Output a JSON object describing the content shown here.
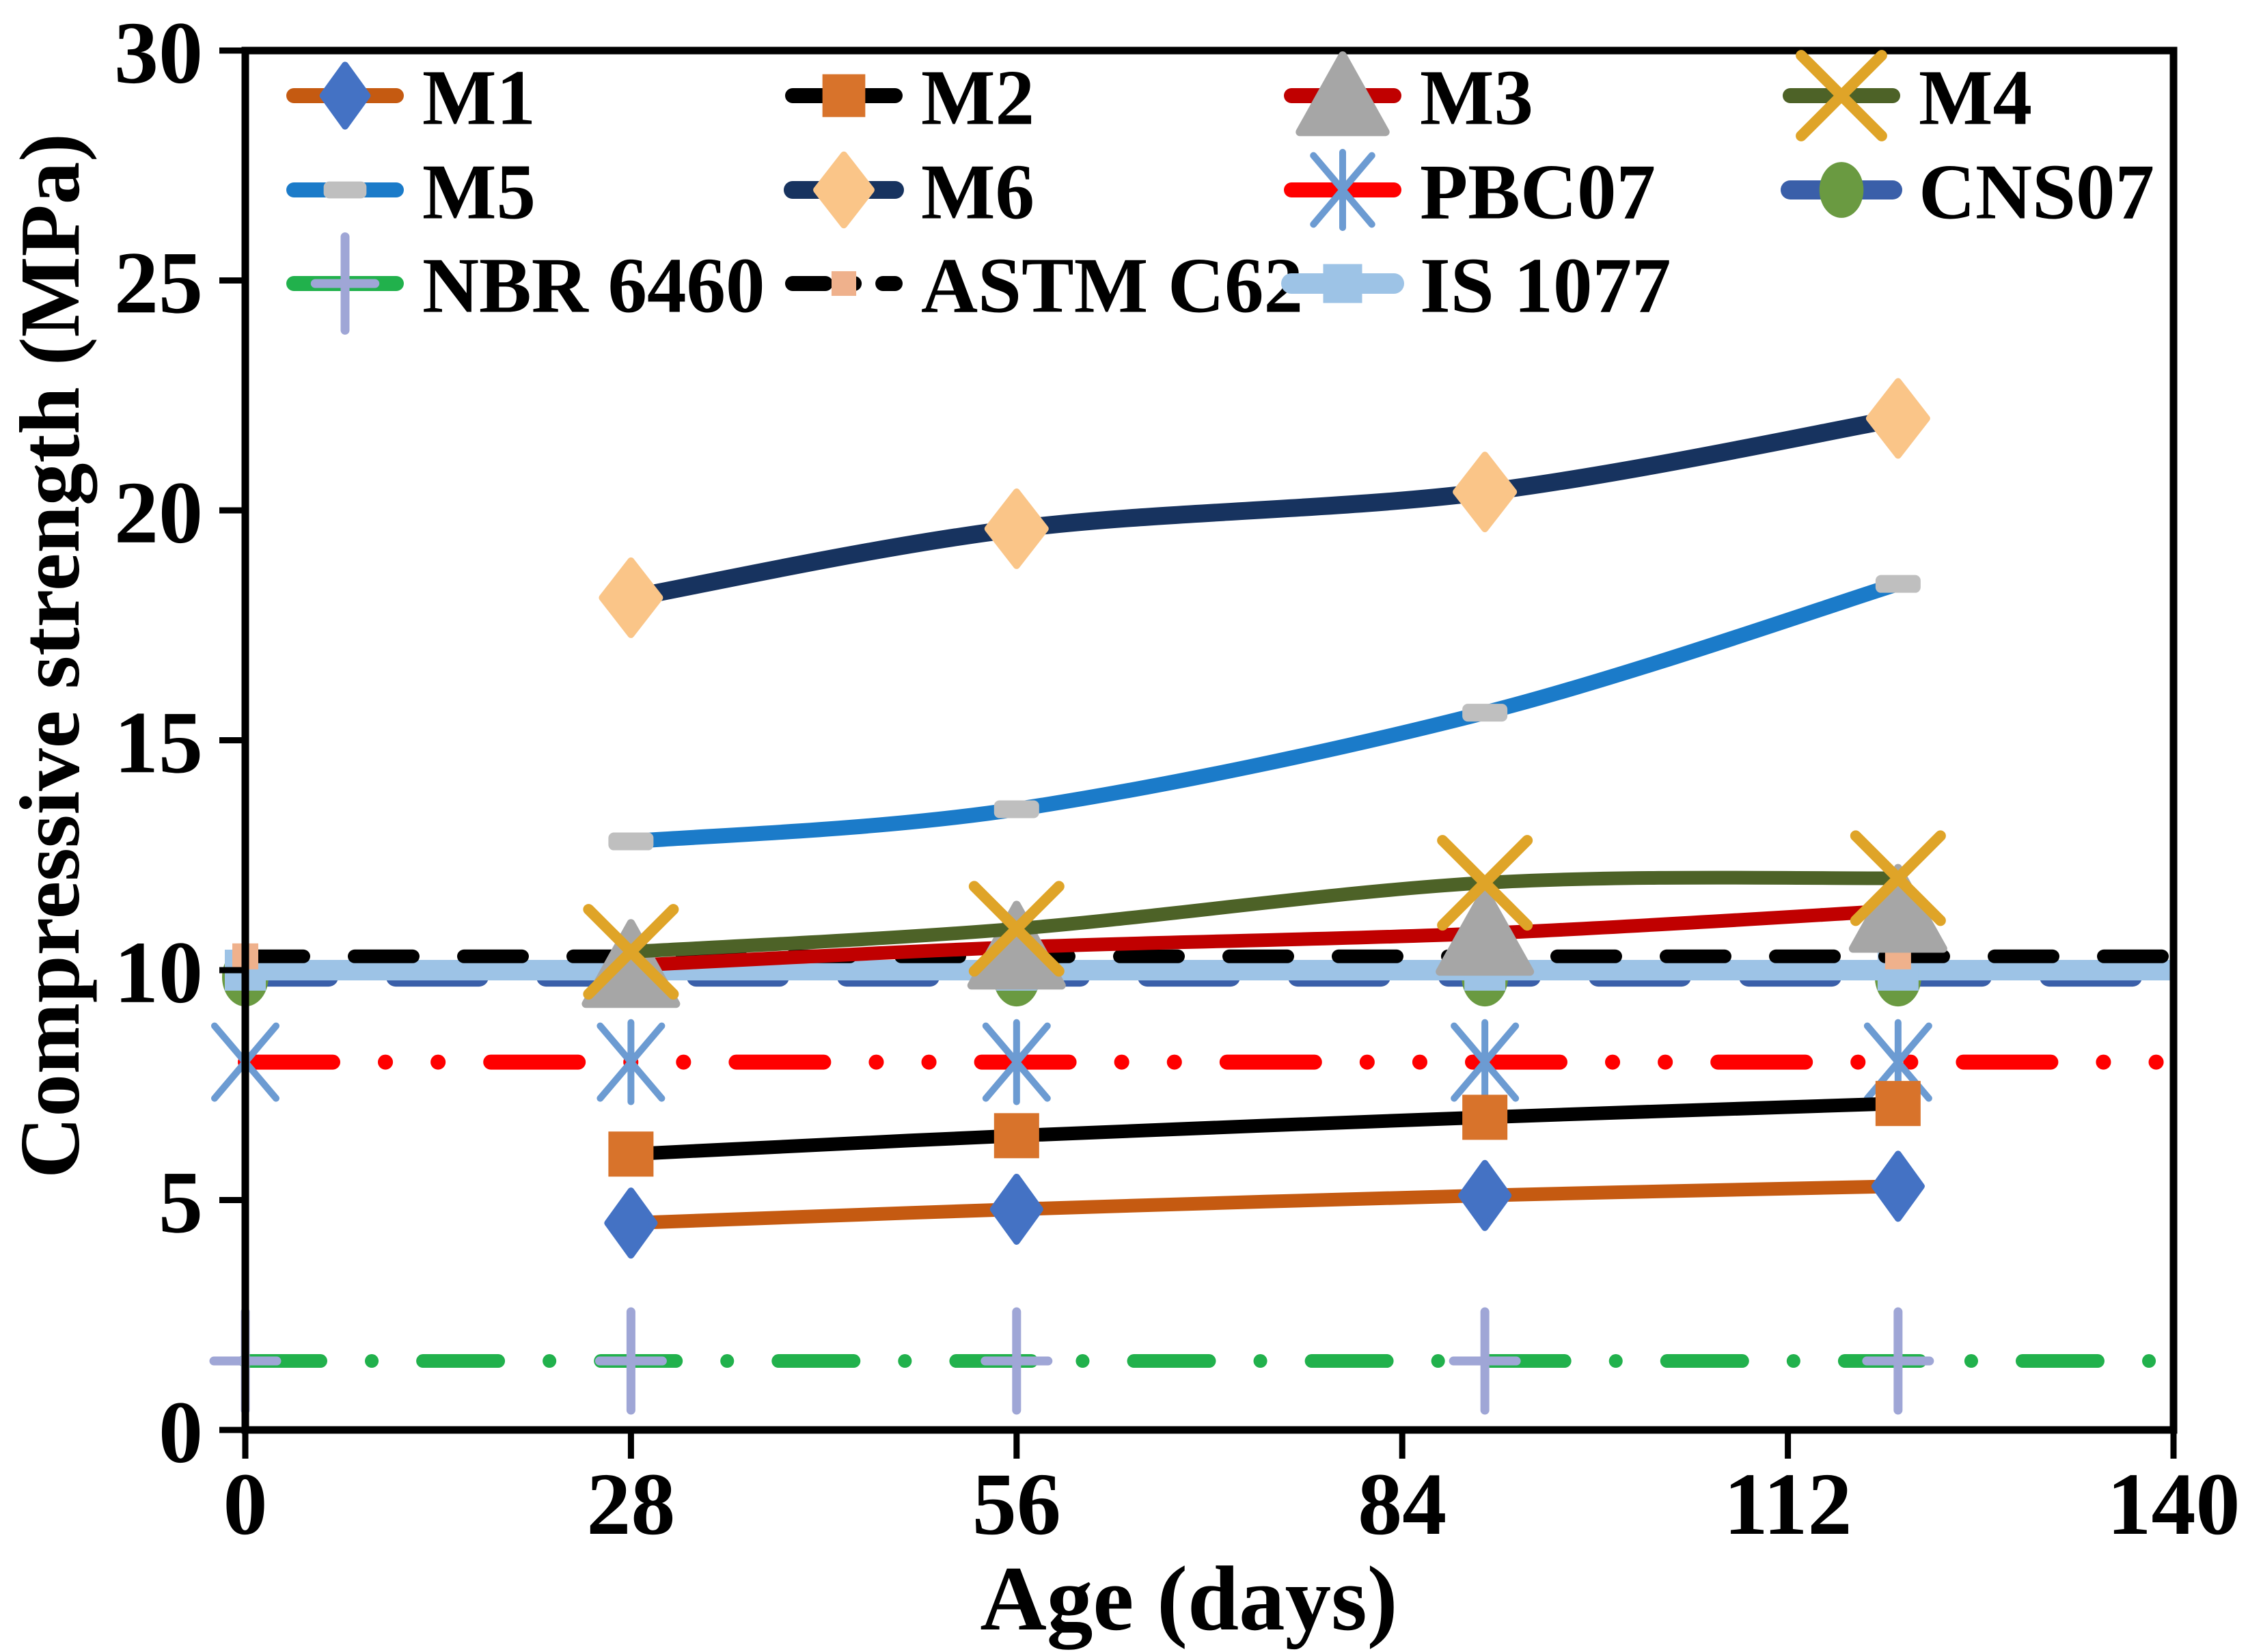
{
  "chart_data": {
    "type": "line",
    "title": "",
    "xlabel": "Age (days)",
    "ylabel": "Compressive strength (MPa)",
    "xlim": [
      0,
      140
    ],
    "ylim": [
      0,
      30
    ],
    "x_ticks": [
      0,
      28,
      56,
      84,
      112,
      140
    ],
    "y_ticks": [
      0,
      5,
      10,
      15,
      20,
      25,
      30
    ],
    "grid": false,
    "legend_position": "inside-top-left",
    "x": [
      28,
      56,
      90,
      120
    ],
    "series": [
      {
        "name": "M1",
        "kind": "data",
        "values": [
          4.5,
          4.8,
          5.1,
          5.3
        ],
        "line_color": "#C55A11",
        "line_width": 20,
        "dash": null,
        "marker": "diamond",
        "marker_color": "#4472C4"
      },
      {
        "name": "M2",
        "kind": "data",
        "values": [
          6.0,
          6.4,
          6.8,
          7.1
        ],
        "line_color": "#000000",
        "line_width": 20,
        "dash": null,
        "marker": "square",
        "marker_color": "#D8732B"
      },
      {
        "name": "M3",
        "kind": "data",
        "values": [
          10.1,
          10.5,
          10.8,
          11.3
        ],
        "line_color": "#C00000",
        "line_width": 20,
        "dash": null,
        "marker": "triangle",
        "marker_color": "#A6A6A6"
      },
      {
        "name": "M4",
        "kind": "data",
        "values": [
          10.4,
          10.9,
          11.9,
          12.0
        ],
        "line_color": "#4D6227",
        "line_width": 20,
        "dash": null,
        "marker": "xmark",
        "marker_color": "#DFA428"
      },
      {
        "name": "M5",
        "kind": "data",
        "values": [
          12.8,
          13.5,
          15.6,
          18.4
        ],
        "line_color": "#1B7BC9",
        "line_width": 22,
        "dash": null,
        "marker": "dashmark",
        "marker_color": "#BFBFBF"
      },
      {
        "name": "M6",
        "kind": "data",
        "values": [
          18.1,
          19.6,
          20.4,
          22.0
        ],
        "line_color": "#17335F",
        "line_width": 26,
        "dash": null,
        "marker": "bigdiamond",
        "marker_color": "#FAC588"
      },
      {
        "name": "PBC07",
        "kind": "reference",
        "value": 8.0,
        "line_color": "#FF0000",
        "line_width": 22,
        "dash": "128 77 0.1 77 0.1 77",
        "marker": "asterisk",
        "marker_color": "#6C9BD2",
        "marker_x": [
          0,
          28,
          56,
          90,
          120
        ]
      },
      {
        "name": "CNS07",
        "kind": "reference",
        "value": 9.85,
        "line_color": "#3A5FA9",
        "line_width": 28,
        "dash": "122 98",
        "marker": "circle",
        "marker_color": "#6A9A41",
        "marker_x": [
          0,
          28,
          56,
          90,
          120
        ]
      },
      {
        "name": "NBR 6460",
        "kind": "reference",
        "value": 1.5,
        "line_color": "#21B14C",
        "line_width": 20,
        "dash": "110 75 0.1 75",
        "marker": "plus",
        "marker_color": "#9FA6D6",
        "marker_x": [
          0,
          28,
          56,
          90,
          120
        ]
      },
      {
        "name": "ASTM C62",
        "kind": "reference",
        "value": 10.3,
        "line_color": "#000000",
        "line_width": 20,
        "dash": "85 75",
        "marker": "smallsquare",
        "marker_color": "#EFB18C",
        "marker_x": [
          0,
          28,
          56,
          90,
          120
        ]
      },
      {
        "name": "IS 1077",
        "kind": "reference",
        "value": 10.0,
        "line_color": "#9DC3E6",
        "line_width": 30,
        "dash": null,
        "marker": "square2",
        "marker_color": "#9DC3E6",
        "marker_x": [
          0,
          28,
          56,
          90,
          120
        ]
      }
    ],
    "reference_draw_order": [
      "NBR 6460",
      "PBC07",
      "CNS07",
      "IS 1077",
      "ASTM C62"
    ]
  },
  "legend": {
    "rows": 3,
    "cols": 4,
    "items": [
      "M1",
      "M2",
      "M3",
      "M4",
      "M5",
      "M6",
      "PBC07",
      "CNS07",
      "NBR 6460",
      "ASTM C62",
      "IS 1077"
    ]
  }
}
